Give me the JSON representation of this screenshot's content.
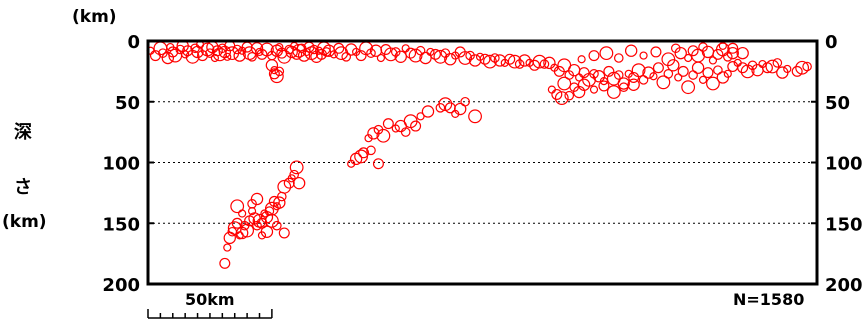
{
  "chart_data": {
    "type": "scatter",
    "title": "",
    "unit_top": "(km)",
    "ylabel_line1": "深",
    "ylabel_line2": "さ",
    "ylabel_unit": "(km)",
    "y_axis": {
      "min": 0,
      "max": 200,
      "inverted": true,
      "ticks": [
        0,
        50,
        100,
        150,
        200
      ]
    },
    "y_tick_labels": [
      "0",
      "50",
      "100",
      "150",
      "200"
    ],
    "x_axis": {
      "min": 0,
      "max": 270,
      "unit": "km",
      "tick_labels_shown": false
    },
    "scale_bar": {
      "label": "50km",
      "length_km": 50,
      "divisions": 10
    },
    "count_label": "N=1580",
    "grid": {
      "horizontal_dotted_at": [
        50,
        100,
        150
      ]
    },
    "marker": {
      "shape": "open-circle",
      "color": "#ff0000"
    },
    "series": [
      {
        "points_note": "x = horizontal distance (km) along section, y = depth (km)",
        "points": [
          [
            1,
            8
          ],
          [
            3,
            12
          ],
          [
            5,
            6
          ],
          [
            6,
            10
          ],
          [
            8,
            14
          ],
          [
            9,
            5
          ],
          [
            10,
            9
          ],
          [
            11,
            12
          ],
          [
            13,
            7
          ],
          [
            14,
            4
          ],
          [
            15,
            11
          ],
          [
            16,
            8
          ],
          [
            18,
            13
          ],
          [
            19,
            6
          ],
          [
            20,
            9
          ],
          [
            21,
            3
          ],
          [
            22,
            12
          ],
          [
            24,
            7
          ],
          [
            25,
            10
          ],
          [
            26,
            5
          ],
          [
            27,
            14
          ],
          [
            28,
            8
          ],
          [
            29,
            11
          ],
          [
            30,
            6
          ],
          [
            31,
            9
          ],
          [
            32,
            13
          ],
          [
            33,
            4
          ],
          [
            34,
            10
          ],
          [
            36,
            7
          ],
          [
            37,
            12
          ],
          [
            38,
            8
          ],
          [
            40,
            5
          ],
          [
            41,
            10
          ],
          [
            42,
            13
          ],
          [
            44,
            6
          ],
          [
            45,
            9
          ],
          [
            46,
            11
          ],
          [
            48,
            7
          ],
          [
            50,
            12
          ],
          [
            52,
            8
          ],
          [
            53,
            5
          ],
          [
            54,
            10
          ],
          [
            55,
            13
          ],
          [
            57,
            7
          ],
          [
            58,
            9
          ],
          [
            59,
            4
          ],
          [
            60,
            11
          ],
          [
            61,
            8
          ],
          [
            62,
            6
          ],
          [
            63,
            12
          ],
          [
            64,
            9
          ],
          [
            65,
            5
          ],
          [
            66,
            10
          ],
          [
            67,
            7
          ],
          [
            68,
            13
          ],
          [
            69,
            8
          ],
          [
            70,
            11
          ],
          [
            71,
            6
          ],
          [
            72,
            9
          ],
          [
            50,
            20
          ],
          [
            51,
            24
          ],
          [
            51,
            27
          ],
          [
            52,
            29
          ],
          [
            53,
            25
          ],
          [
            73,
            8
          ],
          [
            75,
            11
          ],
          [
            77,
            6
          ],
          [
            78,
            10
          ],
          [
            80,
            13
          ],
          [
            82,
            7
          ],
          [
            84,
            9
          ],
          [
            86,
            12
          ],
          [
            88,
            6
          ],
          [
            90,
            10
          ],
          [
            92,
            8
          ],
          [
            94,
            14
          ],
          [
            96,
            7
          ],
          [
            98,
            11
          ],
          [
            100,
            9
          ],
          [
            102,
            13
          ],
          [
            104,
            6
          ],
          [
            106,
            10
          ],
          [
            108,
            12
          ],
          [
            110,
            8
          ],
          [
            112,
            14
          ],
          [
            114,
            9
          ],
          [
            116,
            11
          ],
          [
            118,
            13
          ],
          [
            120,
            10
          ],
          [
            122,
            15
          ],
          [
            124,
            12
          ],
          [
            126,
            9
          ],
          [
            128,
            14
          ],
          [
            130,
            12
          ],
          [
            132,
            16
          ],
          [
            134,
            13
          ],
          [
            136,
            15
          ],
          [
            138,
            17
          ],
          [
            140,
            14
          ],
          [
            142,
            16
          ],
          [
            144,
            18
          ],
          [
            146,
            15
          ],
          [
            148,
            17
          ],
          [
            150,
            19
          ],
          [
            152,
            16
          ],
          [
            154,
            18
          ],
          [
            156,
            20
          ],
          [
            158,
            17
          ],
          [
            160,
            19
          ],
          [
            162,
            18
          ],
          [
            164,
            22
          ],
          [
            166,
            25
          ],
          [
            168,
            20
          ],
          [
            170,
            28
          ],
          [
            172,
            24
          ],
          [
            174,
            30
          ],
          [
            176,
            26
          ],
          [
            178,
            32
          ],
          [
            180,
            27
          ],
          [
            182,
            29
          ],
          [
            184,
            33
          ],
          [
            186,
            25
          ],
          [
            188,
            31
          ],
          [
            190,
            28
          ],
          [
            192,
            35
          ],
          [
            194,
            27
          ],
          [
            196,
            30
          ],
          [
            198,
            24
          ],
          [
            200,
            32
          ],
          [
            202,
            26
          ],
          [
            204,
            29
          ],
          [
            206,
            22
          ],
          [
            208,
            34
          ],
          [
            210,
            27
          ],
          [
            212,
            20
          ],
          [
            214,
            30
          ],
          [
            216,
            25
          ],
          [
            218,
            38
          ],
          [
            220,
            28
          ],
          [
            222,
            22
          ],
          [
            224,
            32
          ],
          [
            226,
            26
          ],
          [
            228,
            35
          ],
          [
            230,
            24
          ],
          [
            232,
            30
          ],
          [
            234,
            27
          ],
          [
            236,
            21
          ],
          [
            168,
            35
          ],
          [
            172,
            38
          ],
          [
            176,
            36
          ],
          [
            180,
            40
          ],
          [
            184,
            37
          ],
          [
            188,
            42
          ],
          [
            192,
            38
          ],
          [
            196,
            36
          ],
          [
            163,
            40
          ],
          [
            165,
            44
          ],
          [
            167,
            47
          ],
          [
            170,
            45
          ],
          [
            174,
            42
          ],
          [
            175,
            15
          ],
          [
            180,
            12
          ],
          [
            185,
            10
          ],
          [
            190,
            14
          ],
          [
            195,
            8
          ],
          [
            200,
            12
          ],
          [
            205,
            9
          ],
          [
            210,
            15
          ],
          [
            213,
            6
          ],
          [
            215,
            10
          ],
          [
            218,
            14
          ],
          [
            220,
            8
          ],
          [
            222,
            12
          ],
          [
            224,
            5
          ],
          [
            226,
            9
          ],
          [
            228,
            16
          ],
          [
            230,
            11
          ],
          [
            232,
            7
          ],
          [
            234,
            13
          ],
          [
            236,
            10
          ],
          [
            238,
            18
          ],
          [
            240,
            22
          ],
          [
            242,
            25
          ],
          [
            244,
            20
          ],
          [
            246,
            24
          ],
          [
            248,
            19
          ],
          [
            250,
            22
          ],
          [
            252,
            21
          ],
          [
            254,
            18
          ],
          [
            256,
            26
          ],
          [
            258,
            23
          ],
          [
            262,
            25
          ],
          [
            264,
            22
          ],
          [
            266,
            21
          ],
          [
            240,
            10
          ],
          [
            232,
            4
          ],
          [
            236,
            6
          ],
          [
            132,
            62
          ],
          [
            128,
            50
          ],
          [
            126,
            56
          ],
          [
            124,
            60
          ],
          [
            122,
            55
          ],
          [
            120,
            52
          ],
          [
            118,
            55
          ],
          [
            113,
            58
          ],
          [
            110,
            62
          ],
          [
            108,
            70
          ],
          [
            106,
            66
          ],
          [
            104,
            75
          ],
          [
            102,
            70
          ],
          [
            100,
            72
          ],
          [
            97,
            68
          ],
          [
            95,
            78
          ],
          [
            93,
            73
          ],
          [
            91,
            76
          ],
          [
            89,
            80
          ],
          [
            87,
            92
          ],
          [
            86,
            95
          ],
          [
            90,
            90
          ],
          [
            84,
            97
          ],
          [
            82,
            101
          ],
          [
            93,
            101
          ],
          [
            60,
            104
          ],
          [
            59,
            110
          ],
          [
            61,
            117
          ],
          [
            58,
            113
          ],
          [
            57,
            117
          ],
          [
            55,
            120
          ],
          [
            54,
            128
          ],
          [
            53,
            133
          ],
          [
            52,
            136
          ],
          [
            51,
            132
          ],
          [
            50,
            138
          ],
          [
            49,
            140
          ],
          [
            48,
            145
          ],
          [
            47,
            142
          ],
          [
            46,
            150
          ],
          [
            45,
            148
          ],
          [
            44,
            152
          ],
          [
            43,
            146
          ],
          [
            42,
            140
          ],
          [
            41,
            148
          ],
          [
            40,
            156
          ],
          [
            39,
            152
          ],
          [
            38,
            158
          ],
          [
            37,
            160
          ],
          [
            36,
            150
          ],
          [
            35,
            154
          ],
          [
            34,
            157
          ],
          [
            33,
            162
          ],
          [
            32,
            170
          ],
          [
            31,
            183
          ],
          [
            50,
            148
          ],
          [
            52,
            152
          ],
          [
            48,
            157
          ],
          [
            46,
            160
          ],
          [
            55,
            158
          ],
          [
            36,
            136
          ],
          [
            42,
            134
          ],
          [
            44,
            130
          ],
          [
            38,
            142
          ]
        ]
      }
    ]
  }
}
